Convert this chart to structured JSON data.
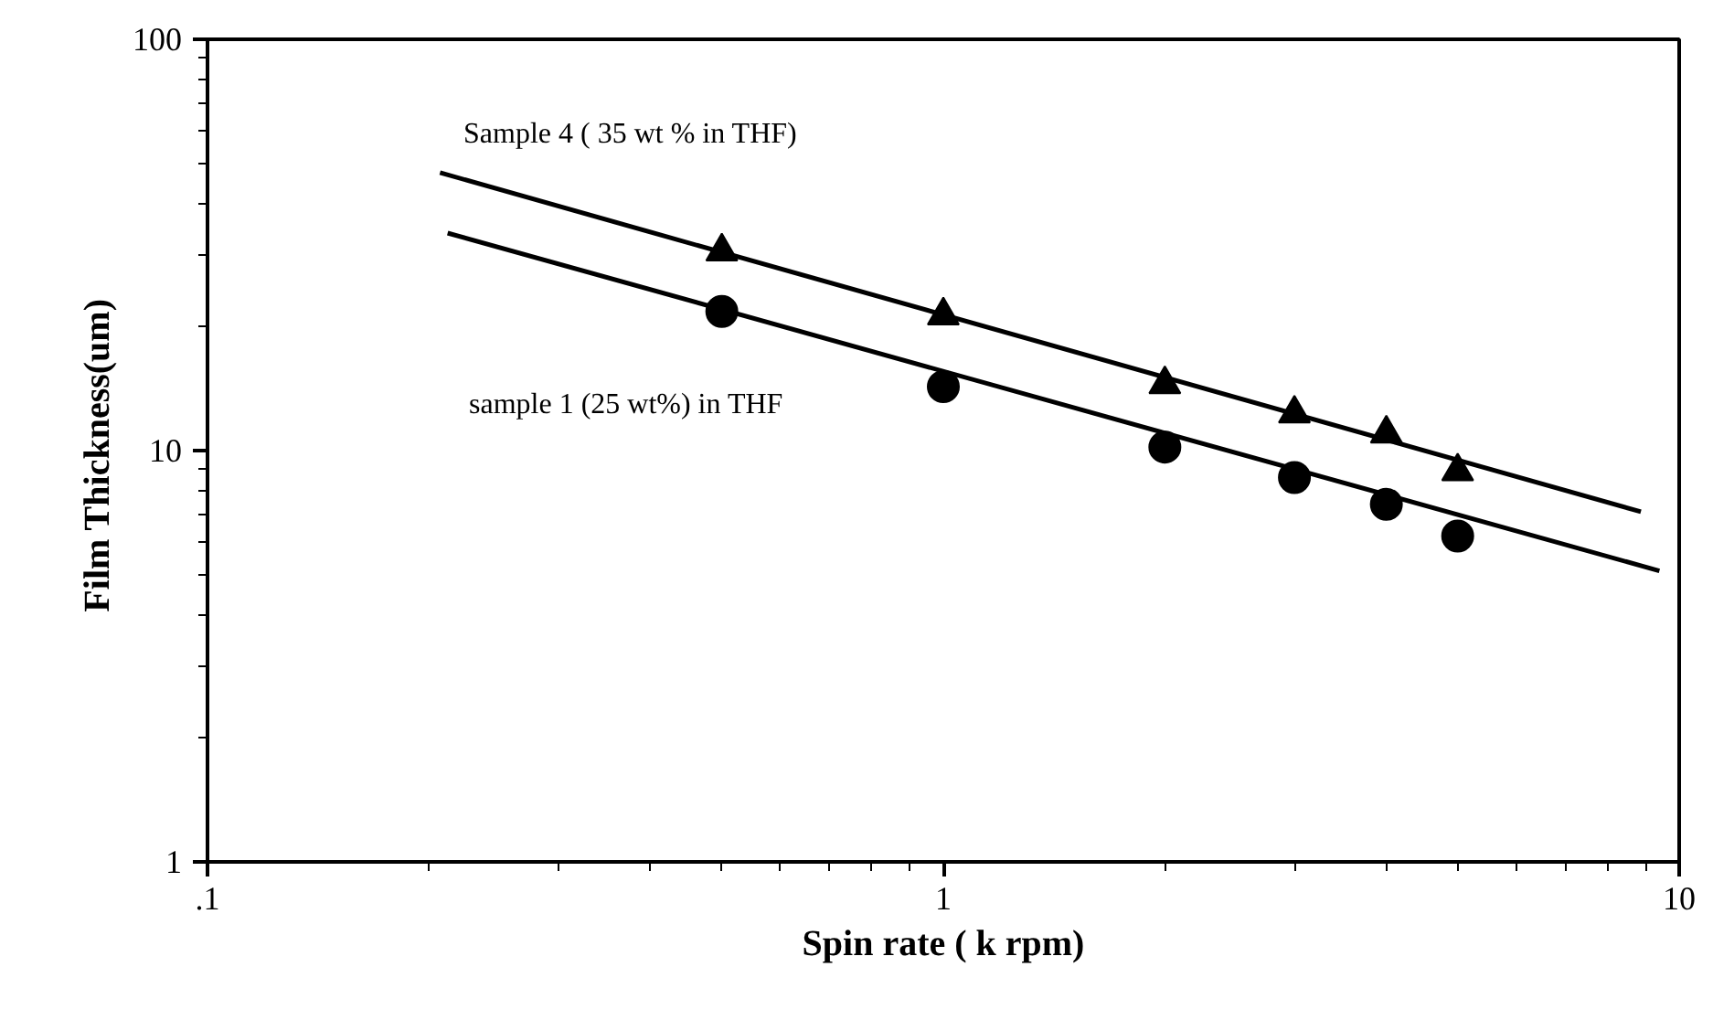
{
  "chart_data": {
    "type": "scatter",
    "xlabel": "Spin rate ( k rpm)",
    "ylabel": "Film  Thickness(um)",
    "log": "xy",
    "grid": false,
    "xlim": [
      0.1,
      10
    ],
    "xticks": [
      {
        "value": 0.1,
        "label": ".1"
      },
      1,
      10
    ],
    "ylim": [
      1,
      100
    ],
    "yticks": [
      1,
      10,
      100
    ],
    "series": [
      {
        "marker": "triangle",
        "color": "#000000",
        "x": [
          0.5,
          1,
          2,
          3,
          4,
          5
        ],
        "values": [
          30.5,
          21.3,
          14.5,
          12.3,
          11.0,
          8.9
        ]
      },
      {
        "marker": "circle",
        "color": "#000000",
        "x": [
          0.5,
          1,
          2,
          3,
          4,
          5
        ],
        "values": [
          21.8,
          14.3,
          10.2,
          8.6,
          7.4,
          6.2
        ]
      },
      {
        "type": "line",
        "color": "#000000",
        "x": [
          0.207,
          8.87
        ],
        "values": [
          47.4,
          7.1
        ]
      },
      {
        "type": "line",
        "color": "#000000",
        "x": [
          0.212,
          9.4
        ],
        "values": [
          33.8,
          5.1
        ]
      }
    ],
    "annotations": [
      "Sample 4 ( 35 wt % in THF)",
      "sample 1 (25 wt%) in THF"
    ]
  }
}
